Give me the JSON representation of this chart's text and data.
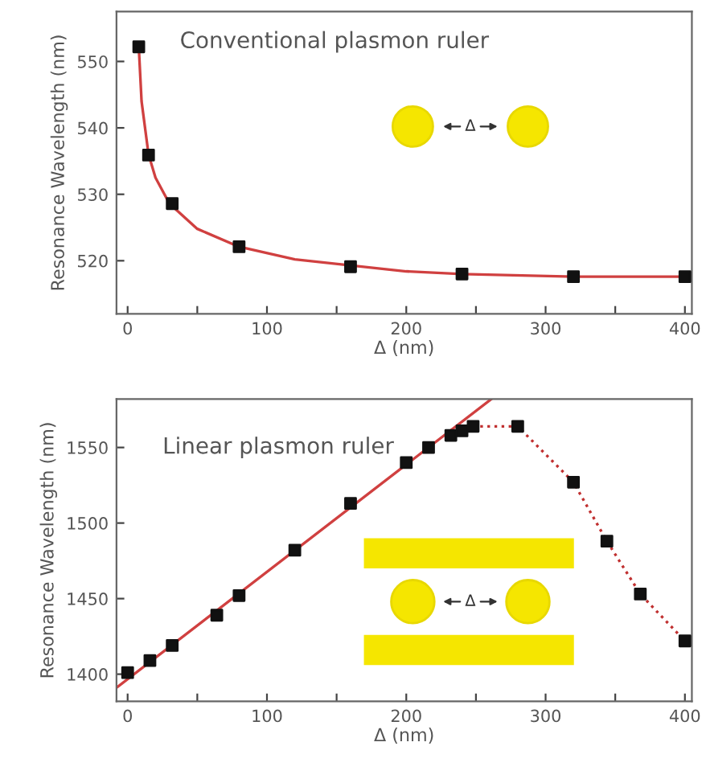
{
  "chart_data": [
    {
      "type": "scatter",
      "xlabel": "Δ (nm)",
      "ylabel": "Resonance Wavelength (nm)",
      "marker": "square",
      "grid": false,
      "legend": false,
      "xlim": [
        -8,
        405
      ],
      "ylim": [
        512,
        557.5
      ],
      "xticks": [
        0,
        {
          "value": 50,
          "label": null
        },
        100,
        {
          "value": 150,
          "label": null
        },
        200,
        {
          "value": 250,
          "label": null
        },
        300,
        {
          "value": 350,
          "label": null
        },
        400
      ],
      "yticks": [
        520,
        530,
        540,
        550
      ],
      "annotations": [
        "Conventional plasmon ruler",
        "Δ"
      ],
      "series": [
        {
          "type": "line",
          "color": "#d04040",
          "marker": "none",
          "line_style": "solid",
          "x": [
            8,
            10,
            15,
            20,
            30,
            50,
            80,
            120,
            200,
            240,
            320,
            400
          ],
          "values": [
            552.2,
            544,
            536,
            532.5,
            528.6,
            524.8,
            522.1,
            520.2,
            518.4,
            518.0,
            517.6,
            517.6
          ]
        },
        {
          "color": "#111111",
          "x": [
            8,
            15,
            32,
            80,
            160,
            240,
            320,
            400
          ],
          "values": [
            552.2,
            535.9,
            528.6,
            522.1,
            519.1,
            518.0,
            517.6,
            517.6
          ]
        }
      ]
    },
    {
      "type": "scatter",
      "xlabel": "Δ (nm)",
      "ylabel": "Resonance Wavelength (nm)",
      "marker": "square",
      "grid": false,
      "legend": false,
      "xlim": [
        -8,
        405
      ],
      "ylim": [
        1382,
        1582
      ],
      "xticks": [
        0,
        {
          "value": 50,
          "label": null
        },
        100,
        {
          "value": 150,
          "label": null
        },
        200,
        {
          "value": 250,
          "label": null
        },
        300,
        {
          "value": 350,
          "label": null
        },
        400
      ],
      "yticks": [
        1400,
        1450,
        1500,
        1550
      ],
      "annotations": [
        "Linear plasmon ruler",
        "Δ"
      ],
      "series": [
        {
          "type": "line",
          "color": "#d04040",
          "marker": "none",
          "line_style": "solid",
          "x": [
            -8,
            261
          ],
          "values": [
            1391,
            1582
          ]
        },
        {
          "type": "line",
          "color": "#c03030",
          "marker": "none",
          "line_style": "dotted",
          "x": [
            248,
            280,
            320,
            344,
            368,
            400
          ],
          "values": [
            1564,
            1564,
            1527,
            1488,
            1453,
            1422
          ]
        },
        {
          "color": "#111111",
          "x": [
            0,
            16,
            32,
            64,
            80,
            120,
            160,
            200,
            216,
            232,
            240,
            248,
            280,
            320,
            344,
            368,
            400
          ],
          "values": [
            1401,
            1409,
            1419,
            1439,
            1452,
            1482,
            1513,
            1540,
            1550,
            1558,
            1561,
            1564,
            1564,
            1527,
            1488,
            1453,
            1422
          ]
        }
      ]
    }
  ]
}
